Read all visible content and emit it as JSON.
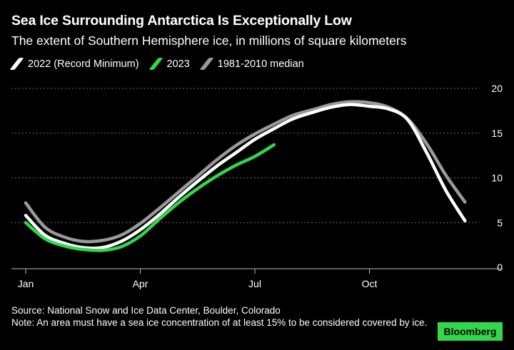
{
  "header": {
    "title": "Sea Ice Surrounding Antarctica Is Exceptionally Low",
    "subtitle": "The extent of Southern Hemisphere ice, in millions of square kilometers"
  },
  "legend": [
    {
      "label": "2022 (Record Minimum)",
      "color": "#ffffff"
    },
    {
      "label": "2023",
      "color": "#32d74b"
    },
    {
      "label": "1981-2010 median",
      "color": "#9a9a9a"
    }
  ],
  "footer": {
    "source": "Source: National Snow and Ice Data Center, Boulder, Colorado",
    "note": "Note: An area must have a sea ice concentration of at least 15% to be considered covered by ice."
  },
  "brand": {
    "label": "Bloomberg",
    "color": "#32d74b"
  },
  "chart_data": {
    "type": "line",
    "title": "Sea Ice Surrounding Antarctica Is Exceptionally Low",
    "subtitle": "The extent of Southern Hemisphere ice, in millions of square kilometers",
    "xlabel": "",
    "ylabel": "",
    "x_ticks": [
      "Jan",
      "Apr",
      "Jul",
      "Oct"
    ],
    "y_ticks": [
      0,
      5,
      10,
      15,
      20
    ],
    "ylim": [
      0,
      20
    ],
    "xlim_months": [
      0,
      12
    ],
    "grid": "horizontal dashed",
    "y_axis_side": "right",
    "legend_position": "top-left",
    "series": [
      {
        "name": "1981-2010 median",
        "color": "#9a9a9a",
        "x": [
          0,
          0.5,
          1,
          1.5,
          2,
          2.5,
          3,
          3.5,
          4,
          4.5,
          5,
          5.5,
          6,
          6.5,
          7,
          7.5,
          8,
          8.5,
          9,
          9.5,
          10,
          10.5,
          11,
          11.5
        ],
        "y": [
          7.2,
          4.5,
          3.4,
          2.9,
          3.0,
          3.6,
          4.9,
          6.6,
          8.4,
          10.2,
          12.0,
          13.6,
          14.9,
          16.0,
          17.0,
          17.6,
          18.2,
          18.5,
          18.4,
          17.9,
          16.6,
          13.8,
          10.3,
          7.3
        ]
      },
      {
        "name": "2022 (Record Minimum)",
        "color": "#ffffff",
        "x": [
          0,
          0.5,
          1,
          1.5,
          2,
          2.5,
          3,
          3.5,
          4,
          4.5,
          5,
          5.5,
          6,
          6.5,
          7,
          7.5,
          8,
          8.5,
          9,
          9.5,
          10,
          10.5,
          11,
          11.5
        ],
        "y": [
          5.8,
          3.6,
          2.7,
          2.2,
          2.2,
          2.9,
          4.2,
          5.9,
          7.8,
          9.6,
          11.3,
          12.8,
          14.3,
          15.5,
          16.6,
          17.3,
          17.9,
          18.2,
          18.0,
          17.7,
          16.5,
          12.8,
          8.6,
          5.2
        ]
      },
      {
        "name": "2023",
        "color": "#32d74b",
        "x": [
          0,
          0.5,
          1,
          1.5,
          2,
          2.5,
          3,
          3.5,
          4,
          4.5,
          5,
          5.5,
          6,
          6.5
        ],
        "y": [
          5.0,
          3.2,
          2.4,
          2.0,
          1.9,
          2.3,
          3.5,
          5.4,
          7.2,
          8.8,
          10.2,
          11.4,
          12.4,
          13.7
        ]
      }
    ]
  }
}
